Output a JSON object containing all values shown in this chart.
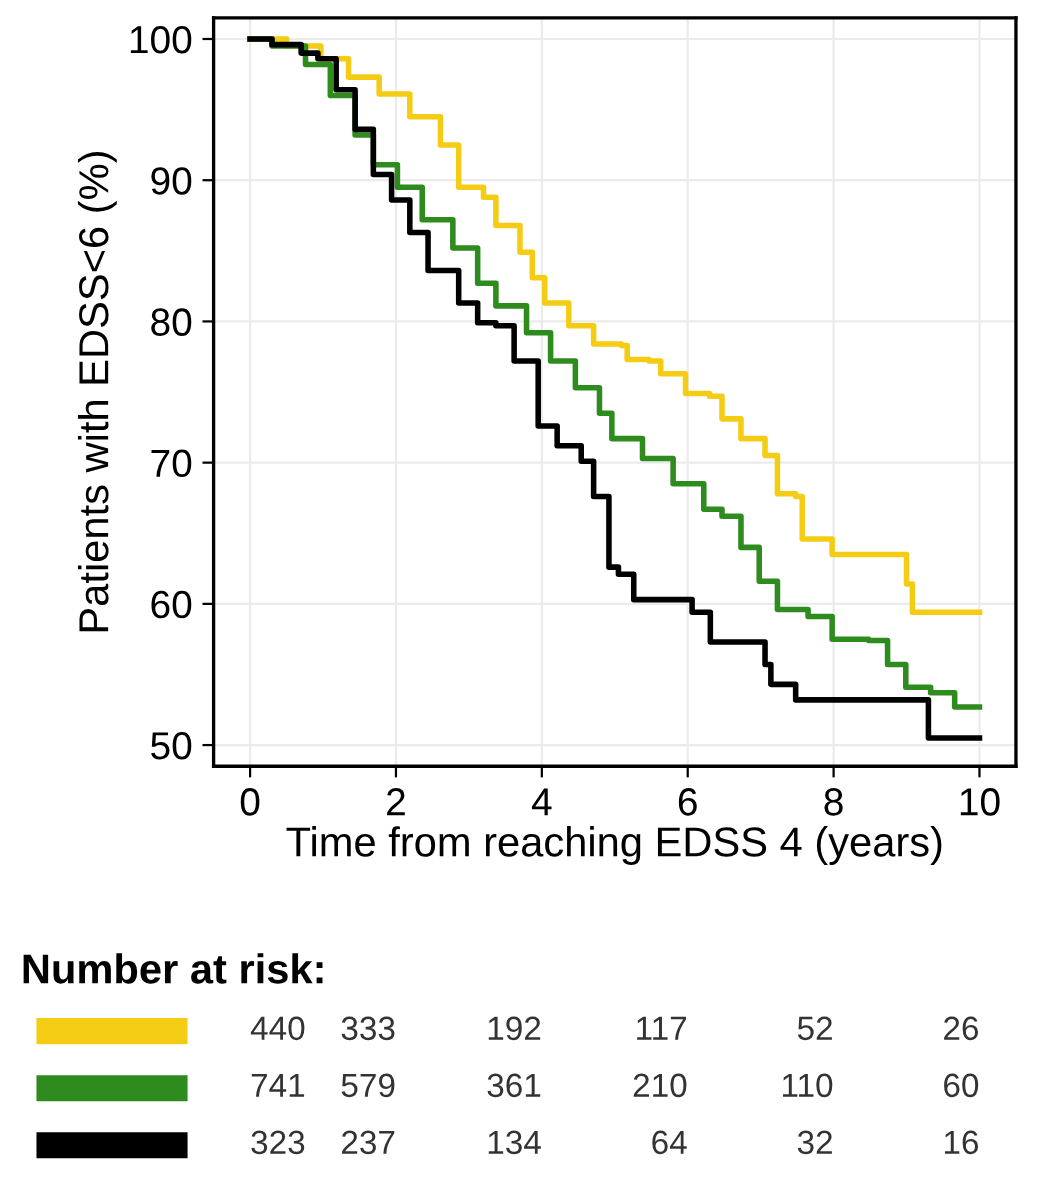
{
  "chart_data": {
    "type": "step",
    "xlabel": "Time from reaching EDSS 4 (years)",
    "ylabel": "Patients with EDSS<6 (%)",
    "xlim": [
      -0.5,
      10.5
    ],
    "ylim": [
      48.5,
      101.5
    ],
    "xticks": [
      0,
      2,
      4,
      6,
      8,
      10
    ],
    "yticks": [
      50,
      60,
      70,
      80,
      90,
      100
    ],
    "grid": true,
    "series": [
      {
        "color": "#f5cc14",
        "x": [
          0,
          0.5,
          0.97,
          1.35,
          1.77,
          2.19,
          2.61,
          2.86,
          3.2,
          3.37,
          3.7,
          3.87,
          4.04,
          4.37,
          4.71,
          5.09,
          5.17,
          5.47,
          5.63,
          5.97,
          6.3,
          6.47,
          6.73,
          7.06,
          7.23,
          7.48,
          7.57,
          7.94,
          7.98,
          8.95,
          9.0,
          9.08,
          10
        ],
        "values": [
          100,
          99.5,
          98.6,
          97.3,
          96.1,
          94.5,
          92.5,
          89.5,
          88.8,
          86.8,
          84.9,
          83.1,
          81.3,
          79.7,
          78.4,
          78.3,
          77.3,
          77.2,
          76.3,
          74.9,
          74.7,
          73.1,
          71.7,
          70.5,
          67.8,
          67.6,
          64.6,
          64.6,
          63.5,
          63.5,
          61.4,
          59.4,
          59.4
        ]
      },
      {
        "color": "#2e8b1e",
        "x": [
          0,
          0.3,
          0.76,
          1.1,
          1.44,
          1.69,
          2.02,
          2.36,
          2.78,
          3.12,
          3.37,
          3.79,
          4.12,
          4.46,
          4.79,
          4.96,
          5.38,
          5.8,
          6.22,
          6.47,
          6.73,
          6.98,
          7.23,
          7.65,
          7.98,
          8.48,
          8.74,
          8.99,
          9.33,
          9.66,
          10
        ],
        "values": [
          100,
          99.5,
          98.2,
          96.0,
          93.2,
          91.1,
          89.5,
          87.2,
          85.2,
          82.7,
          81.1,
          79.2,
          77.2,
          75.3,
          73.5,
          71.7,
          70.3,
          68.5,
          66.7,
          66.2,
          64.0,
          61.6,
          59.6,
          59.1,
          57.5,
          57.4,
          55.7,
          54.1,
          53.7,
          52.7,
          52.7
        ]
      },
      {
        "color": "#000000",
        "x": [
          0,
          0.3,
          0.7,
          0.93,
          1.18,
          1.44,
          1.69,
          1.94,
          2.19,
          2.44,
          2.86,
          3.12,
          3.37,
          3.62,
          3.95,
          4.21,
          4.54,
          4.71,
          4.92,
          5.05,
          5.26,
          5.97,
          6.06,
          6.31,
          6.98,
          7.06,
          7.14,
          7.48,
          9.3,
          10
        ],
        "values": [
          100,
          99.6,
          99.0,
          98.6,
          96.4,
          93.6,
          90.4,
          88.6,
          86.3,
          83.6,
          81.3,
          79.9,
          79.7,
          77.2,
          72.6,
          71.2,
          70.1,
          67.6,
          62.6,
          62.1,
          60.3,
          60.3,
          59.4,
          57.3,
          57.3,
          55.7,
          54.3,
          53.2,
          50.5,
          50.5
        ]
      }
    ],
    "annotations": [
      "Number at risk:",
      "440",
      "333",
      "192",
      "117",
      "52",
      "26",
      "741",
      "579",
      "361",
      "210",
      "110",
      "60",
      "323",
      "237",
      "134",
      "64",
      "32",
      "16"
    ]
  }
}
